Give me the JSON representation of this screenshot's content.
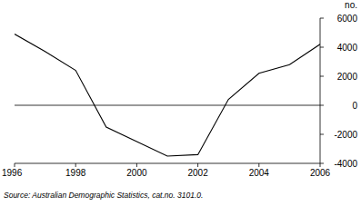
{
  "chart_data": {
    "type": "line",
    "y_label": "no.",
    "source": "Source: Australian Demographic Statistics, cat.no. 3101.0.",
    "x": [
      1996,
      1997,
      1998,
      1999,
      2000,
      2001,
      2002,
      2003,
      2004,
      2005,
      2006
    ],
    "values": [
      4900,
      3700,
      2400,
      -1500,
      -2500,
      -3500,
      -3400,
      400,
      2200,
      2800,
      4200
    ],
    "color": "#000000",
    "xlim": [
      1996,
      2006
    ],
    "xticks": [
      1996,
      1998,
      2000,
      2002,
      2004,
      2006
    ],
    "ylim": [
      -4000,
      6000
    ],
    "yticks": [
      -4000,
      -2000,
      0,
      2000,
      4000,
      6000
    ],
    "grid": false
  }
}
